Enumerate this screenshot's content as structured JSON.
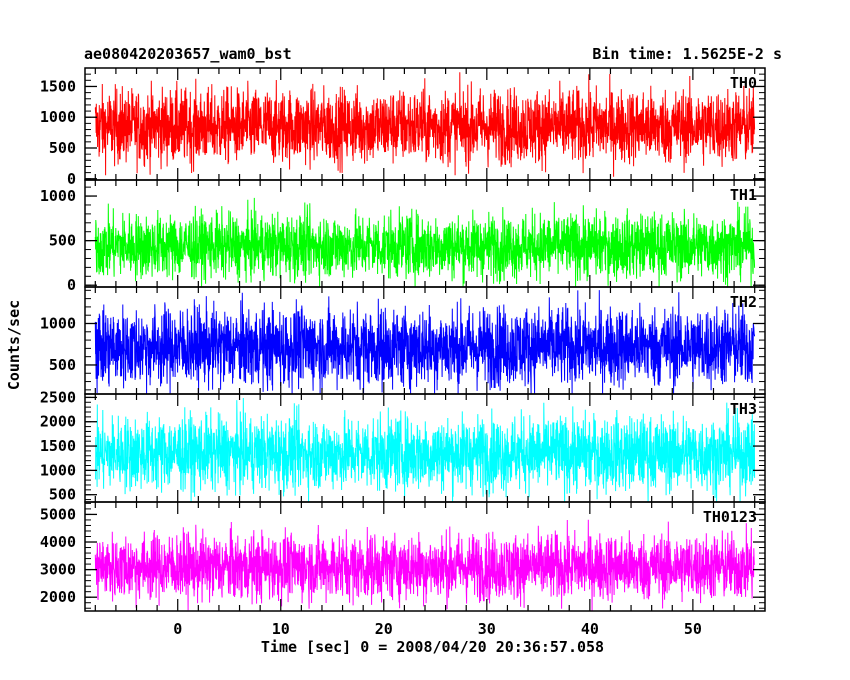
{
  "header": {
    "title_left": "ae080420203657_wam0_bst",
    "title_right": "Bin time: 1.5625E-2 s"
  },
  "chart_data": {
    "type": "line",
    "xlabel": "Time [sec] 0 = 2008/04/20 20:36:57.058",
    "ylabel": "Counts/sec",
    "xlim": [
      -9,
      57
    ],
    "x_data_range": [
      -8,
      56
    ],
    "xticks": [
      0,
      10,
      20,
      30,
      40,
      50
    ],
    "panels": [
      {
        "name": "TH0",
        "color": "#ff0000",
        "ylim": [
          -20,
          1800
        ],
        "yticks": [
          0,
          500,
          1000,
          1500
        ],
        "mean": 850,
        "sigma": 300,
        "typical_max": 1750,
        "typical_min": 150
      },
      {
        "name": "TH1",
        "color": "#00ff00",
        "ylim": [
          -20,
          1180
        ],
        "yticks": [
          0,
          500,
          1000
        ],
        "mean": 440,
        "sigma": 180,
        "typical_max": 1150,
        "typical_min": 50
      },
      {
        "name": "TH2",
        "color": "#0000ff",
        "ylim": [
          150,
          1440
        ],
        "yticks": [
          500,
          1000
        ],
        "mean": 720,
        "sigma": 240,
        "typical_max": 1420,
        "typical_min": 230
      },
      {
        "name": "TH3",
        "color": "#00ffff",
        "ylim": [
          350,
          2570
        ],
        "yticks": [
          500,
          1000,
          1500,
          2000,
          2500
        ],
        "mean": 1350,
        "sigma": 380,
        "typical_max": 2500,
        "typical_min": 500
      },
      {
        "name": "TH0123",
        "color": "#ff00ff",
        "ylim": [
          1500,
          5450
        ],
        "yticks": [
          2000,
          3000,
          4000,
          5000
        ],
        "mean": 3100,
        "sigma": 600,
        "typical_max": 5400,
        "typical_min": 1700
      }
    ]
  }
}
